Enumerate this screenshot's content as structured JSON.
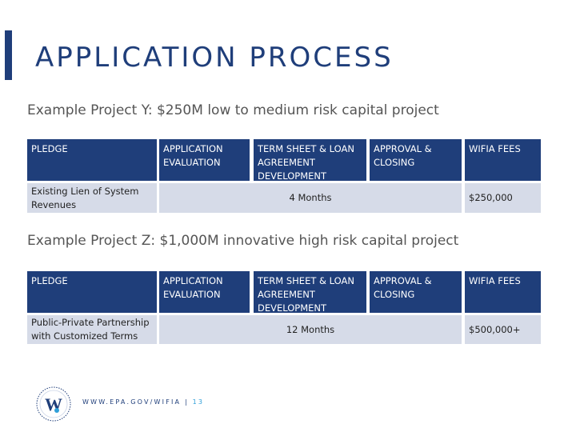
{
  "title": "APPLICATION PROCESS",
  "projects": [
    {
      "subtitle": "Example Project Y: $250M low to medium risk capital project",
      "headers": {
        "pledge": "PLEDGE",
        "evaluation": "APPLICATION EVALUATION",
        "term_sheet": "TERM SHEET & LOAN AGREEMENT DEVELOPMENT",
        "approval": "APPROVAL & CLOSING",
        "fees": "WIFIA FEES"
      },
      "pledge_value": "Existing Lien of System Revenues",
      "duration": "4 Months",
      "fee_value": "$250,000"
    },
    {
      "subtitle": "Example Project Z: $1,000M innovative high risk capital project",
      "headers": {
        "pledge": "PLEDGE",
        "evaluation": "APPLICATION EVALUATION",
        "term_sheet": "TERM SHEET & LOAN AGREEMENT DEVELOPMENT",
        "approval": "APPROVAL & CLOSING",
        "fees": "WIFIA FEES"
      },
      "pledge_value": "Public-Private Partnership with Customized Terms",
      "duration": "12 Months",
      "fee_value": "$500,000+"
    }
  ],
  "footer": {
    "logo_letter": "W",
    "url": "WWW.EPA.GOV/WIFIA |",
    "page": "13"
  },
  "colors": {
    "navy": "#1f3e7a",
    "light_row": "#d6dbe8",
    "accent_blue": "#2f9fd8"
  }
}
